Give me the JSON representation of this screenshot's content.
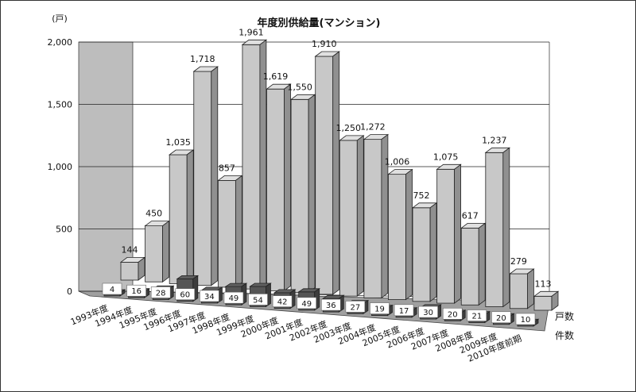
{
  "chart_data": {
    "type": "bar",
    "title": "年度別供給量(マンション)",
    "unit_label": "(戸)",
    "ylim": [
      0,
      2000
    ],
    "yticks": [
      "0",
      "500",
      "1,000",
      "1,500",
      "2,000"
    ],
    "categories": [
      "1993年度",
      "1994年度",
      "1995年度",
      "1996年度",
      "1997年度",
      "1998年度",
      "1999年度",
      "2000年度",
      "2001年度",
      "2002年度",
      "2003年度",
      "2004年度",
      "2005年度",
      "2006年度",
      "2007年度",
      "2008年度",
      "2009年度",
      "2010年度前期"
    ],
    "series": [
      {
        "name": "戸数",
        "values": [
          144,
          450,
          1035,
          1718,
          857,
          1961,
          1619,
          1550,
          1910,
          1250,
          1272,
          1006,
          752,
          1075,
          617,
          1237,
          279,
          113
        ],
        "labels": [
          "144",
          "450",
          "1,035",
          "1,718",
          "857",
          "1,961",
          "1,619",
          "1,550",
          "1,910",
          "1,250",
          "1,272",
          "1,006",
          "752",
          "1,075",
          "617",
          "1,237",
          "279",
          "113"
        ],
        "color": "#c8c8c8"
      },
      {
        "name": "件数",
        "values": [
          4,
          16,
          28,
          60,
          34,
          49,
          54,
          42,
          49,
          36,
          27,
          19,
          17,
          30,
          20,
          21,
          20,
          10
        ],
        "labels": [
          "4",
          "16",
          "28",
          "60",
          "34",
          "49",
          "54",
          "42",
          "49",
          "36",
          "27",
          "19",
          "17",
          "30",
          "20",
          "21",
          "20",
          "10"
        ],
        "color": "#555555"
      }
    ],
    "grid": true,
    "style": "3d-bar"
  }
}
